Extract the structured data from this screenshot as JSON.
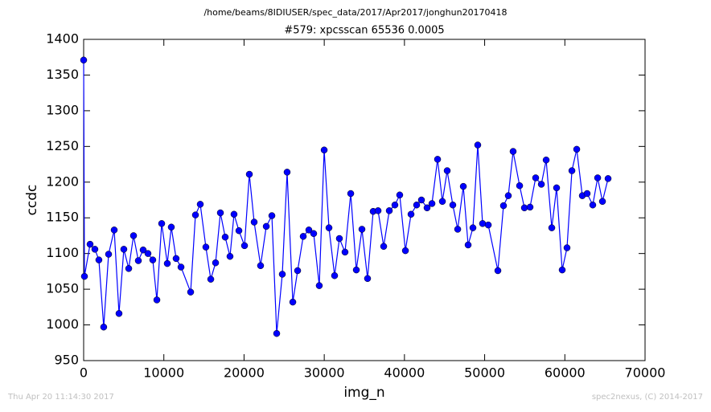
{
  "chart_data": {
    "type": "line",
    "suptitle": "/home/beams/8IDIUSER/spec_data/2017/Apr2017/jonghun20170418",
    "title": "#579: xpcsscan 65536 0.0005",
    "xlabel": "img_n",
    "ylabel": "ccdc",
    "footer_left": "Thu Apr 20 11:14:30 2017",
    "footer_right": "spec2nexus, (C) 2014-2017",
    "xlim": [
      0,
      70000
    ],
    "xticks": [
      0,
      10000,
      20000,
      30000,
      40000,
      50000,
      60000,
      70000
    ],
    "ylim": [
      950,
      1400
    ],
    "yticks": [
      950,
      1000,
      1050,
      1100,
      1150,
      1200,
      1250,
      1300,
      1350,
      1400
    ],
    "grid": false,
    "x": [
      0,
      100,
      800,
      1400,
      1900,
      2500,
      3110,
      3810,
      4410,
      5010,
      5620,
      6220,
      6820,
      7420,
      8020,
      8620,
      9130,
      9730,
      10430,
      10930,
      11530,
      12140,
      13340,
      13940,
      14540,
      15240,
      15850,
      16450,
      17050,
      17650,
      18250,
      18750,
      19360,
      20060,
      20660,
      21260,
      22060,
      22770,
      23470,
      24070,
      24770,
      25370,
      26080,
      26680,
      27380,
      28080,
      28680,
      29380,
      29990,
      30590,
      31290,
      31890,
      32590,
      33300,
      34000,
      34700,
      35400,
      36100,
      36710,
      37410,
      38110,
      38810,
      39410,
      40120,
      40820,
      41520,
      42120,
      42820,
      43430,
      44130,
      44730,
      45330,
      46030,
      46640,
      47340,
      47940,
      48540,
      49140,
      49740,
      50450,
      51650,
      52350,
      52950,
      53550,
      54360,
      54960,
      55660,
      56360,
      57070,
      57670,
      58370,
      58970,
      59670,
      60270,
      60880,
      61480,
      62180,
      62780,
      63480,
      64090,
      64690,
      65390
    ],
    "series": [
      {
        "color": "#0000ff",
        "values": [
          1371,
          1068,
          1113,
          1106,
          1091,
          997,
          1099,
          1133,
          1016,
          1106,
          1079,
          1125,
          1090,
          1105,
          1100,
          1091,
          1035,
          1142,
          1086,
          1137,
          1093,
          1081,
          1046,
          1154,
          1169,
          1109,
          1064,
          1087,
          1157,
          1123,
          1096,
          1155,
          1132,
          1111,
          1211,
          1144,
          1083,
          1138,
          1153,
          988,
          1071,
          1214,
          1032,
          1076,
          1124,
          1133,
          1128,
          1055,
          1245,
          1136,
          1069,
          1121,
          1102,
          1184,
          1077,
          1134,
          1065,
          1159,
          1160,
          1110,
          1160,
          1168,
          1182,
          1104,
          1155,
          1168,
          1175,
          1164,
          1170,
          1232,
          1173,
          1216,
          1168,
          1134,
          1194,
          1112,
          1136,
          1252,
          1142,
          1140,
          1076,
          1167,
          1181,
          1243,
          1195,
          1164,
          1165,
          1206,
          1197,
          1231,
          1136,
          1192,
          1077,
          1108,
          1216,
          1246,
          1181,
          1184,
          1168,
          1206,
          1173,
          1205
        ]
      }
    ]
  }
}
